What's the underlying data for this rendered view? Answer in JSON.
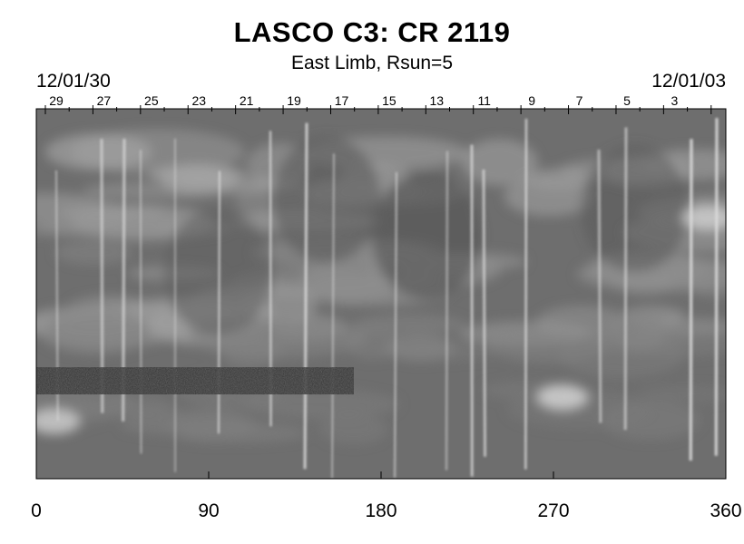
{
  "header": {
    "title": "LASCO C3: CR 2119",
    "subtitle": "East Limb, Rsun=5",
    "date_start": "12/01/30",
    "date_end": "12/01/03"
  },
  "axis": {
    "x_ticks": [
      "0",
      "90",
      "180",
      "270",
      "360"
    ],
    "x_values": [
      0,
      90,
      180,
      270,
      360
    ],
    "x_range": [
      0,
      360
    ]
  },
  "day_markers": {
    "labels": [
      "29",
      "27",
      "25",
      "23",
      "21",
      "19",
      "17",
      "15",
      "13",
      "11",
      "9",
      "7",
      "5",
      "3"
    ],
    "direction": "decreasing-left-to-right"
  },
  "colors": {
    "background": "#ffffff",
    "plot_base": "#6e6e6e",
    "text": "#000000"
  }
}
